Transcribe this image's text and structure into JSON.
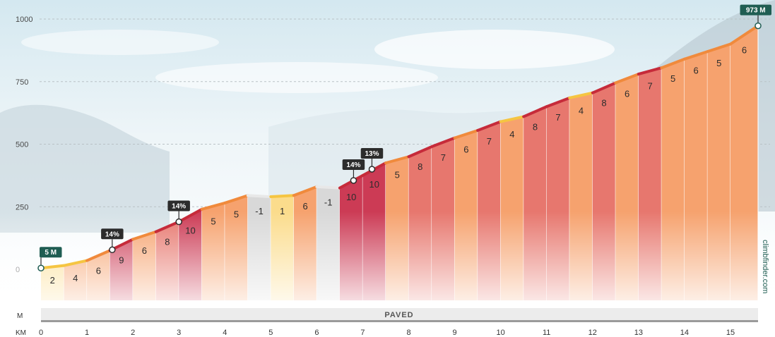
{
  "chart_data": {
    "type": "area",
    "x_unit": "KM",
    "y_unit": "M",
    "ylim": [
      0,
      1000
    ],
    "xlim": [
      0,
      15.6
    ],
    "y_ticks": [
      0,
      250,
      500,
      750,
      1000
    ],
    "x_ticks": [
      0,
      1,
      2,
      3,
      4,
      5,
      6,
      7,
      8,
      9,
      10,
      11,
      12,
      13,
      14,
      15
    ],
    "grid": true,
    "segment_length_km": 0.5,
    "segments": [
      {
        "from": 0.0,
        "to": 0.5,
        "grade": 2
      },
      {
        "from": 0.5,
        "to": 1.0,
        "grade": 4
      },
      {
        "from": 1.0,
        "to": 1.5,
        "grade": 6
      },
      {
        "from": 1.5,
        "to": 2.0,
        "grade": 9
      },
      {
        "from": 2.0,
        "to": 2.5,
        "grade": 6
      },
      {
        "from": 2.5,
        "to": 3.0,
        "grade": 8
      },
      {
        "from": 3.0,
        "to": 3.5,
        "grade": 10
      },
      {
        "from": 3.5,
        "to": 4.0,
        "grade": 5
      },
      {
        "from": 4.0,
        "to": 4.5,
        "grade": 5
      },
      {
        "from": 4.5,
        "to": 5.0,
        "grade": -1
      },
      {
        "from": 5.0,
        "to": 5.5,
        "grade": 1
      },
      {
        "from": 5.5,
        "to": 6.0,
        "grade": 6
      },
      {
        "from": 6.0,
        "to": 6.5,
        "grade": -1
      },
      {
        "from": 6.5,
        "to": 7.0,
        "grade": 10
      },
      {
        "from": 7.0,
        "to": 7.5,
        "grade": 10
      },
      {
        "from": 7.5,
        "to": 8.0,
        "grade": 5
      },
      {
        "from": 8.0,
        "to": 8.5,
        "grade": 8
      },
      {
        "from": 8.5,
        "to": 9.0,
        "grade": 7
      },
      {
        "from": 9.0,
        "to": 9.5,
        "grade": 6
      },
      {
        "from": 9.5,
        "to": 10.0,
        "grade": 7
      },
      {
        "from": 10.0,
        "to": 10.5,
        "grade": 4
      },
      {
        "from": 10.5,
        "to": 11.0,
        "grade": 8
      },
      {
        "from": 11.0,
        "to": 11.5,
        "grade": 7
      },
      {
        "from": 11.5,
        "to": 12.0,
        "grade": 4
      },
      {
        "from": 12.0,
        "to": 12.5,
        "grade": 8
      },
      {
        "from": 12.5,
        "to": 13.0,
        "grade": 6
      },
      {
        "from": 13.0,
        "to": 13.5,
        "grade": 7
      },
      {
        "from": 13.5,
        "to": 14.0,
        "grade": 5
      },
      {
        "from": 14.0,
        "to": 14.5,
        "grade": 6
      },
      {
        "from": 14.5,
        "to": 15.0,
        "grade": 5
      },
      {
        "from": 15.0,
        "to": 15.6,
        "grade": 6
      }
    ],
    "elevation_profile": {
      "x": [
        0,
        0.5,
        1.0,
        1.5,
        2.0,
        2.5,
        3.0,
        3.5,
        4.0,
        4.5,
        5.0,
        5.5,
        6.0,
        6.5,
        7.0,
        7.5,
        8.0,
        8.5,
        9.0,
        9.5,
        10.0,
        10.5,
        11.0,
        11.5,
        12.0,
        12.5,
        13.0,
        13.5,
        14.0,
        14.5,
        15.0,
        15.6
      ],
      "y": [
        5,
        15,
        35,
        75,
        120,
        150,
        190,
        240,
        265,
        295,
        290,
        295,
        330,
        325,
        375,
        425,
        450,
        490,
        525,
        555,
        590,
        610,
        650,
        685,
        705,
        745,
        780,
        805,
        840,
        870,
        900,
        973
      ]
    },
    "callouts": [
      {
        "x": 0,
        "y": 5,
        "text": "5 M",
        "kind": "elevation"
      },
      {
        "x": 1.55,
        "y": 78,
        "text": "14%",
        "kind": "grade"
      },
      {
        "x": 3.0,
        "y": 190,
        "text": "14%",
        "kind": "grade"
      },
      {
        "x": 6.8,
        "y": 355,
        "text": "14%",
        "kind": "grade"
      },
      {
        "x": 7.2,
        "y": 400,
        "text": "13%",
        "kind": "grade"
      },
      {
        "x": 15.6,
        "y": 973,
        "text": "973 M",
        "kind": "elevation"
      }
    ],
    "surface": {
      "label": "PAVED",
      "from": 0,
      "to": 15.6
    },
    "grade_colors": {
      "descent": "#d8d8d8",
      "easy": "#fbdc8c",
      "moderate": "#f6a26e",
      "steep": "#e7776e",
      "very_steep": "#cc3b55"
    }
  },
  "brand": "climbfinder.com",
  "colors": {
    "callout_bg": "#1f5d52",
    "grade_callout_bg": "#2c2c2c",
    "line_steep": "#c62b3a",
    "line_moderate": "#f08a3c",
    "line_easy": "#f5c542"
  }
}
